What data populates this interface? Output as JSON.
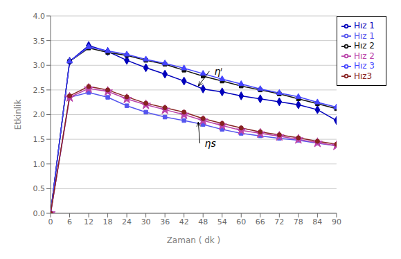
{
  "chart_data": {
    "type": "line",
    "xlabel": "Zaman ( dk )",
    "ylabel": "Etkinlik",
    "x": [
      0,
      6,
      12,
      18,
      24,
      30,
      36,
      42,
      48,
      54,
      60,
      66,
      72,
      78,
      84,
      90
    ],
    "series": [
      {
        "name": "Hız 1",
        "color": "#0000BB",
        "marker": "diamond",
        "values": [
          0.0,
          3.08,
          3.4,
          3.28,
          3.1,
          2.95,
          2.82,
          2.68,
          2.52,
          2.46,
          2.38,
          2.32,
          2.26,
          2.2,
          2.1,
          1.88
        ]
      },
      {
        "name": "Hız 2",
        "color": "#111111",
        "marker": "square",
        "values": [
          0.0,
          3.08,
          3.35,
          3.26,
          3.2,
          3.1,
          3.02,
          2.9,
          2.78,
          2.68,
          2.58,
          2.5,
          2.42,
          2.32,
          2.22,
          2.12
        ]
      },
      {
        "name": "Hız 3",
        "color": "#4444FF",
        "marker": "triangle",
        "values": [
          0.0,
          3.08,
          3.37,
          3.29,
          3.22,
          3.12,
          3.04,
          2.94,
          2.83,
          2.72,
          2.62,
          2.52,
          2.44,
          2.36,
          2.25,
          2.15
        ]
      },
      {
        "name": "Hız 1",
        "color": "#5555EE",
        "marker": "square",
        "values": [
          0.0,
          2.35,
          2.45,
          2.35,
          2.18,
          2.05,
          1.95,
          1.88,
          1.8,
          1.7,
          1.62,
          1.57,
          1.52,
          1.48,
          1.42,
          1.37
        ]
      },
      {
        "name": "Hız 2",
        "color": "#BB44AA",
        "marker": "star",
        "values": [
          0.0,
          2.35,
          2.53,
          2.47,
          2.32,
          2.2,
          2.1,
          2.0,
          1.88,
          1.78,
          1.68,
          1.62,
          1.56,
          1.5,
          1.43,
          1.37
        ]
      },
      {
        "name": "Hız3",
        "color": "#882222",
        "marker": "circle",
        "values": [
          0.0,
          2.38,
          2.57,
          2.5,
          2.36,
          2.23,
          2.14,
          2.05,
          1.92,
          1.82,
          1.73,
          1.65,
          1.59,
          1.53,
          1.46,
          1.4
        ]
      }
    ],
    "xlim": [
      0,
      90
    ],
    "ylim": [
      0.0,
      4.0
    ],
    "xticks": [
      0,
      6,
      12,
      18,
      24,
      30,
      36,
      42,
      48,
      54,
      60,
      66,
      72,
      78,
      84,
      90
    ],
    "yticks": [
      {
        "value": 0,
        "label": "0.0"
      },
      0.5,
      {
        "value": 1,
        "label": "1.0"
      },
      1.5,
      {
        "value": 2,
        "label": "2.0"
      },
      2.5,
      {
        "value": 3,
        "label": "3.0"
      },
      3.5,
      {
        "value": 4,
        "label": "4.0"
      }
    ],
    "grid": "y",
    "legend": "right",
    "annotations": [
      {
        "text": "ηᴵ",
        "xy": [
          46.5,
          2.58
        ],
        "xytext": [
          50,
          2.88
        ]
      },
      {
        "text": "ηs",
        "xy": [
          46.5,
          1.85
        ],
        "xytext": [
          47,
          1.42
        ]
      }
    ]
  }
}
